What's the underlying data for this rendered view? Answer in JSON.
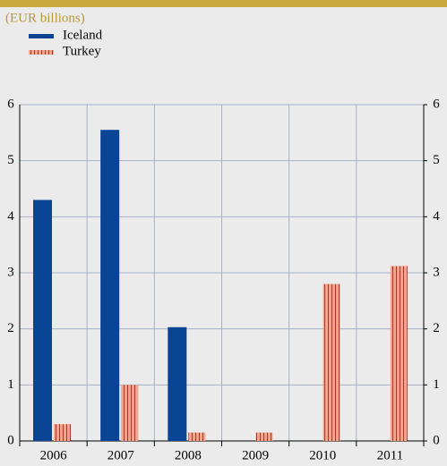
{
  "chart_data": {
    "type": "bar",
    "subtitle": "(EUR billions)",
    "categories": [
      "2006",
      "2007",
      "2008",
      "2009",
      "2010",
      "2011"
    ],
    "series": [
      {
        "name": "Iceland",
        "color": "#0a4595",
        "values": [
          4.3,
          5.55,
          2.03,
          null,
          null,
          null
        ]
      },
      {
        "name": "Turkey",
        "color": "#f2a48c",
        "values": [
          0.3,
          1.0,
          0.15,
          0.15,
          2.8,
          3.12
        ]
      }
    ],
    "ylim": [
      0,
      6
    ],
    "yticks": [
      0,
      1,
      2,
      3,
      4,
      5,
      6
    ],
    "y2lim": [
      0,
      6
    ],
    "y2ticks": [
      0,
      1,
      2,
      3,
      4,
      5,
      6
    ],
    "grid": true
  }
}
